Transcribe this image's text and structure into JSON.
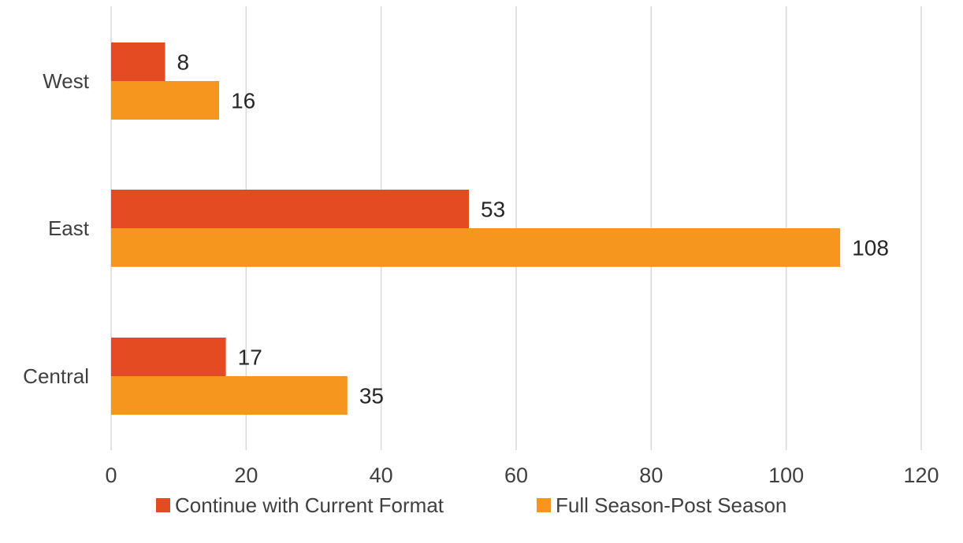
{
  "chart_data": {
    "type": "bar",
    "orientation": "horizontal",
    "categories": [
      "West",
      "East",
      "Central"
    ],
    "series": [
      {
        "name": "Continue with Current Format",
        "values": [
          8,
          53,
          17
        ],
        "color": "#E54B22"
      },
      {
        "name": "Full Season-Post Season",
        "values": [
          16,
          108,
          35
        ],
        "color": "#F7961E"
      }
    ],
    "xlim": [
      0,
      120
    ],
    "x_ticks": [
      "0",
      "20",
      "40",
      "60",
      "80",
      "100",
      "120"
    ],
    "title": "",
    "xlabel": "",
    "ylabel": "",
    "grid": true,
    "grid_color": "#D9D9D9",
    "data_labels": true,
    "legend_position": "bottom"
  }
}
